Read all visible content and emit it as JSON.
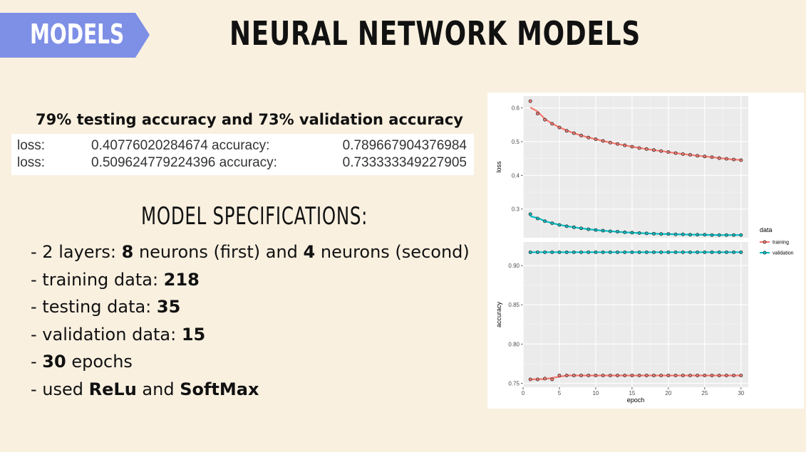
{
  "header": {
    "tag": "MODELS",
    "title": "NEURAL NETWORK MODELS"
  },
  "summary": "79% testing accuracy and 73% validation accuracy",
  "metrics": [
    {
      "label": "loss:",
      "loss": "0.40776020284674 accuracy:",
      "accuracy": "0.789667904376984"
    },
    {
      "label": "loss:",
      "loss": "0.509624779224396 accuracy:",
      "accuracy": "0.733333349227905"
    }
  ],
  "specs": {
    "title": "MODEL SPECIFICATIONS:",
    "items": [
      [
        "- 2 layers: ",
        "8",
        " neurons (first) and ",
        "4",
        " neurons (second)"
      ],
      [
        "- training data: ",
        "218"
      ],
      [
        "- testing data: ",
        "35"
      ],
      [
        "- validation data: ",
        "15"
      ],
      [
        "- ",
        "30",
        " epochs"
      ],
      [
        "- used ",
        "ReLu",
        " and ",
        "SoftMax"
      ]
    ]
  },
  "chart_data": {
    "type": "line",
    "facets": [
      "loss",
      "accuracy"
    ],
    "xlabel": "epoch",
    "xlim": [
      0,
      31
    ],
    "xticks": [
      0,
      5,
      10,
      15,
      20,
      25,
      30
    ],
    "legend": {
      "title": "data",
      "position": "right",
      "entries": [
        "training",
        "validation"
      ]
    },
    "colors": {
      "training": "#f8766d",
      "validation": "#00bfc4"
    },
    "x": [
      1,
      2,
      3,
      4,
      5,
      6,
      7,
      8,
      9,
      10,
      11,
      12,
      13,
      14,
      15,
      16,
      17,
      18,
      19,
      20,
      21,
      22,
      23,
      24,
      25,
      26,
      27,
      28,
      29,
      30
    ],
    "panels": [
      {
        "ylabel": "loss",
        "ylim": [
          0.215,
          0.635
        ],
        "yticks": [
          0.3,
          0.4,
          0.5,
          0.6
        ],
        "series": [
          {
            "name": "training",
            "values": [
              0.62,
              0.583,
              0.565,
              0.553,
              0.542,
              0.532,
              0.525,
              0.518,
              0.512,
              0.507,
              0.502,
              0.497,
              0.493,
              0.489,
              0.485,
              0.481,
              0.478,
              0.475,
              0.472,
              0.469,
              0.466,
              0.463,
              0.461,
              0.458,
              0.456,
              0.454,
              0.451,
              0.449,
              0.447,
              0.445
            ]
          },
          {
            "name": "validation",
            "values": [
              0.285,
              0.272,
              0.264,
              0.258,
              0.253,
              0.249,
              0.246,
              0.243,
              0.24,
              0.238,
              0.236,
              0.234,
              0.233,
              0.231,
              0.23,
              0.229,
              0.228,
              0.227,
              0.226,
              0.226,
              0.225,
              0.225,
              0.224,
              0.224,
              0.224,
              0.223,
              0.223,
              0.223,
              0.223,
              0.223
            ]
          }
        ]
      },
      {
        "ylabel": "accuracy",
        "ylim": [
          0.745,
          0.93
        ],
        "yticks": [
          0.75,
          0.8,
          0.85,
          0.9
        ],
        "series": [
          {
            "name": "training",
            "values": [
              0.755,
              0.755,
              0.756,
              0.755,
              0.76,
              0.76,
              0.76,
              0.76,
              0.76,
              0.76,
              0.76,
              0.76,
              0.76,
              0.76,
              0.76,
              0.76,
              0.76,
              0.76,
              0.76,
              0.76,
              0.76,
              0.76,
              0.76,
              0.76,
              0.76,
              0.76,
              0.76,
              0.76,
              0.76,
              0.76
            ]
          },
          {
            "name": "validation",
            "values": [
              0.917,
              0.917,
              0.917,
              0.917,
              0.917,
              0.917,
              0.917,
              0.917,
              0.917,
              0.917,
              0.917,
              0.917,
              0.917,
              0.917,
              0.917,
              0.917,
              0.917,
              0.917,
              0.917,
              0.917,
              0.917,
              0.917,
              0.917,
              0.917,
              0.917,
              0.917,
              0.917,
              0.917,
              0.917,
              0.917
            ]
          }
        ]
      }
    ]
  }
}
